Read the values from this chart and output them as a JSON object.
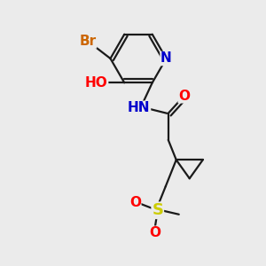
{
  "background_color": "#ebebeb",
  "bond_color": "#1a1a1a",
  "atom_colors": {
    "Br": "#cc6600",
    "O": "#ff0000",
    "N": "#0000cc",
    "S": "#cccc00",
    "H": "#555555",
    "C": "#1a1a1a"
  },
  "font_size_atoms": 11,
  "font_size_small": 9,
  "lw": 1.6
}
